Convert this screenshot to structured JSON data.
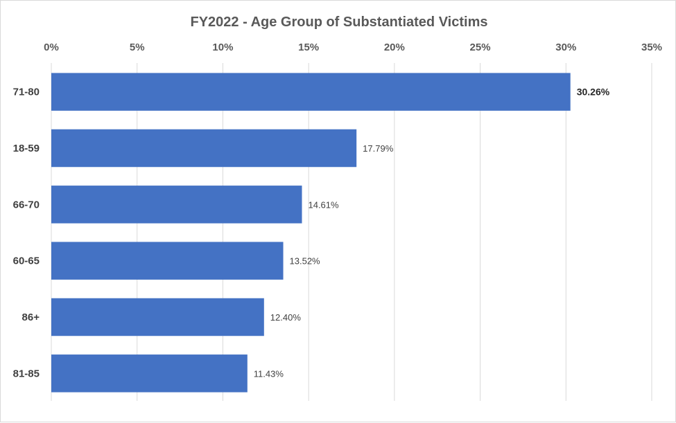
{
  "chart_data": {
    "type": "bar",
    "orientation": "horizontal",
    "title": "FY2022 - Age Group of Substantiated Victims",
    "xlabel": "",
    "ylabel": "",
    "categories": [
      "71-80",
      "18-59",
      "66-70",
      "60-65",
      "86+",
      "81-85"
    ],
    "values": [
      30.26,
      17.79,
      14.61,
      13.52,
      12.4,
      11.43
    ],
    "data_labels": [
      "30.26%",
      "17.79%",
      "14.61%",
      "13.52%",
      "12.40%",
      "11.43%"
    ],
    "xlim": [
      0,
      35
    ],
    "x_ticks": [
      0,
      5,
      10,
      15,
      20,
      25,
      30,
      35
    ],
    "x_tick_labels": [
      "0%",
      "5%",
      "10%",
      "15%",
      "20%",
      "25%",
      "30%",
      "35%"
    ],
    "x_axis_position": "top",
    "grid": true,
    "legend": "none",
    "bar_color": "#4472c4",
    "grid_color": "#d9d9d9",
    "highlighted_label_index": 0
  }
}
